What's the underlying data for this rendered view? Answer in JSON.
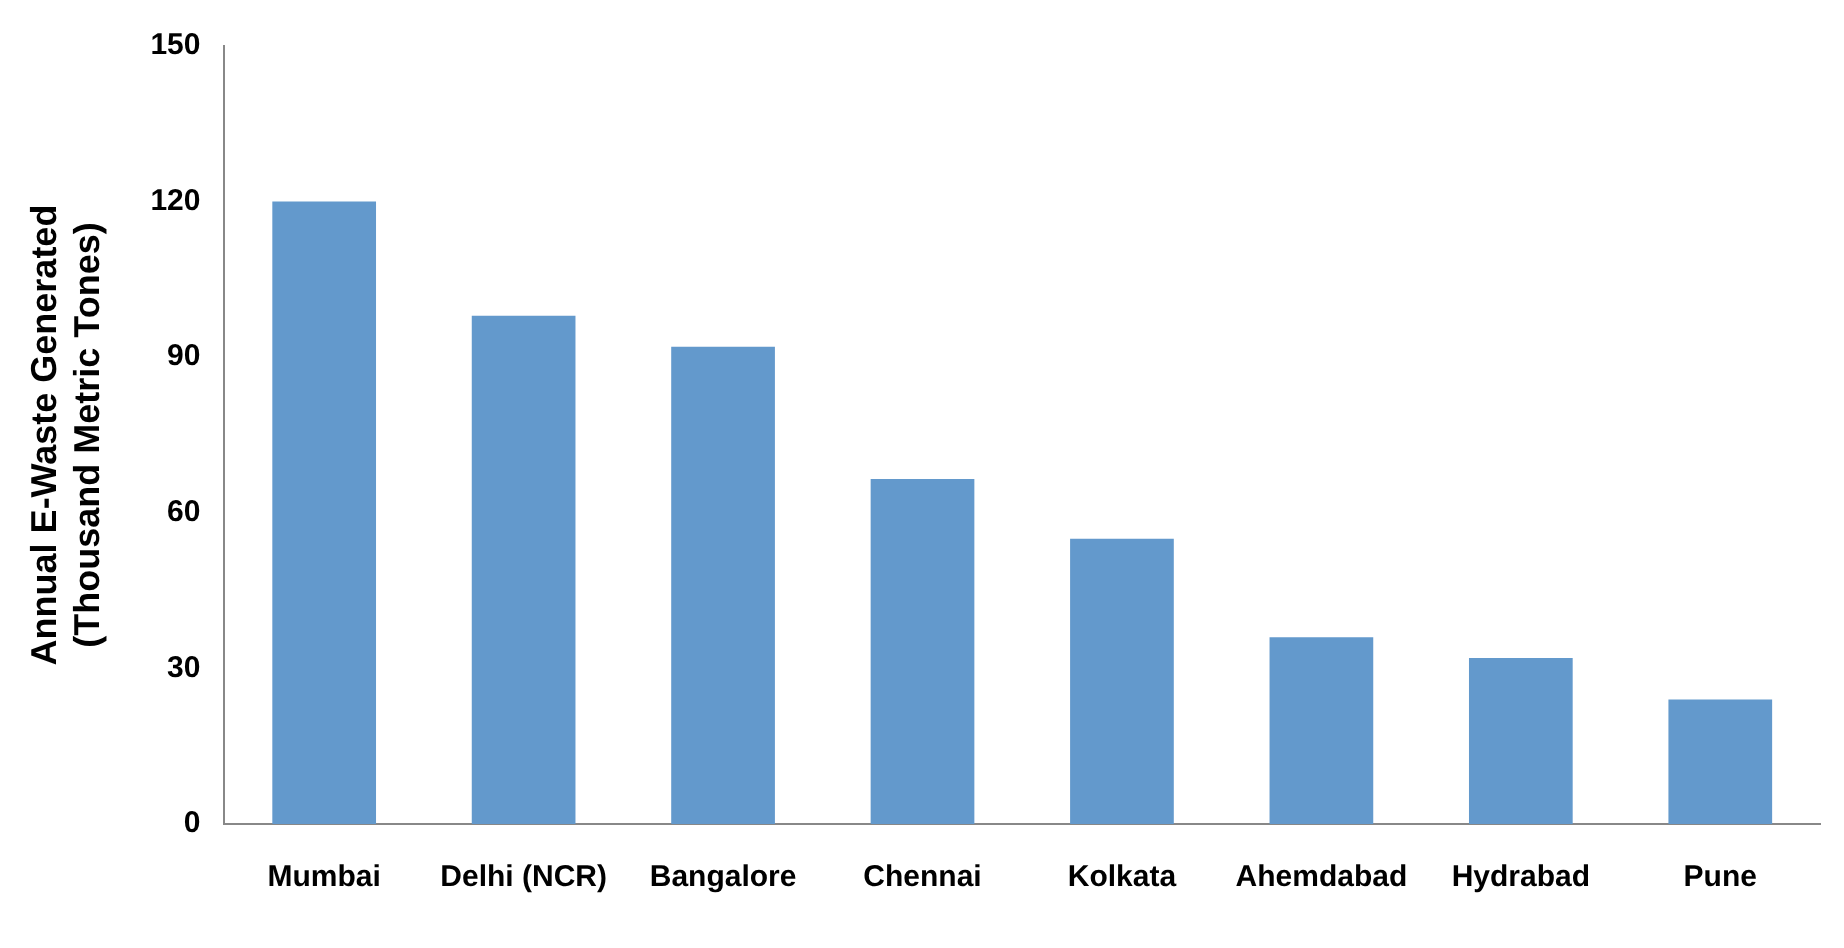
{
  "chart_data": {
    "type": "bar",
    "ylabel": "Annual E-Waste Generated\n(Thousand Metric Tones)",
    "categories": [
      "Mumbai",
      "Delhi (NCR)",
      "Bangalore",
      "Chennai",
      "Kolkata",
      "Ahemdabad",
      "Hydrabad",
      "Pune"
    ],
    "values": [
      120,
      98,
      92,
      66.5,
      55,
      36,
      32,
      24
    ],
    "color": "#6399cc",
    "ylim": [
      0,
      150
    ],
    "yticks": [
      0,
      30,
      60,
      90,
      120,
      150
    ],
    "grid": false,
    "legend": false
  }
}
